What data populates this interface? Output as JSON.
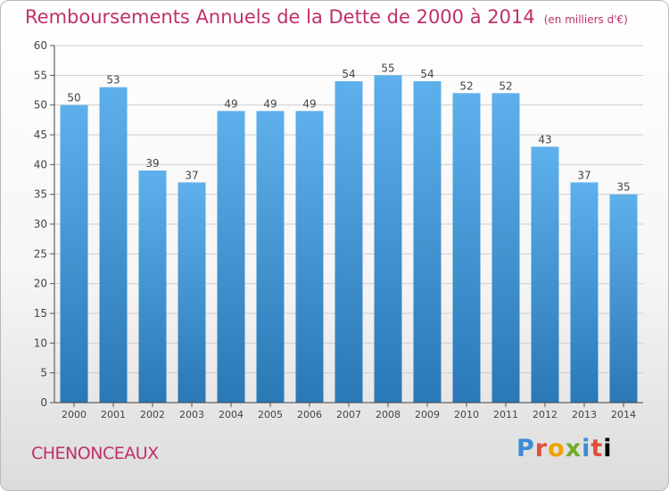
{
  "header": {
    "title": "Remboursements Annuels de la Dette de 2000 à 2014",
    "unit": "(en milliers d'€)"
  },
  "footer": {
    "commune": "CHENONCEAUX",
    "brand_letters": [
      "P",
      "r",
      "o",
      "x",
      "i",
      "t",
      "i"
    ]
  },
  "colors": {
    "title": "#c0306a",
    "bar_top": "#5eb0ec",
    "bar_bottom": "#2a78b6"
  },
  "chart_data": {
    "type": "bar",
    "categories": [
      "2000",
      "2001",
      "2002",
      "2003",
      "2004",
      "2005",
      "2006",
      "2007",
      "2008",
      "2009",
      "2010",
      "2011",
      "2012",
      "2013",
      "2014"
    ],
    "values": [
      50,
      53,
      39,
      37,
      49,
      49,
      49,
      54,
      55,
      54,
      52,
      52,
      43,
      37,
      35
    ],
    "ylim": [
      0,
      60
    ],
    "yticks": [
      0,
      5,
      10,
      15,
      20,
      25,
      30,
      35,
      40,
      45,
      50,
      55,
      60
    ],
    "grid": true,
    "data_labels": true
  }
}
